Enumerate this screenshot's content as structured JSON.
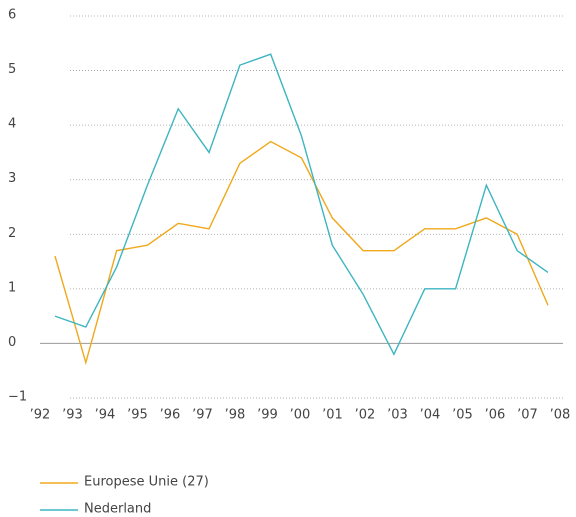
{
  "chart_data": {
    "type": "line",
    "categories": [
      "’92",
      "’93",
      "’94",
      "’95",
      "’96",
      "’97",
      "’98",
      "’99",
      "’00",
      "’01",
      "’02",
      "’03",
      "’04",
      "’05",
      "’06",
      "’07",
      "’08"
    ],
    "series": [
      {
        "name": "Europese Unie (27)",
        "color": "#f0a81c",
        "values": [
          1.6,
          -0.35,
          1.7,
          1.8,
          2.2,
          2.1,
          3.3,
          3.7,
          3.4,
          2.3,
          1.7,
          1.7,
          2.1,
          2.1,
          2.3,
          2.0,
          0.7
        ]
      },
      {
        "name": "Nederland",
        "color": "#3db5c0",
        "values": [
          0.5,
          0.3,
          1.4,
          2.9,
          4.3,
          3.5,
          5.1,
          5.3,
          3.8,
          1.8,
          0.9,
          -0.2,
          1.0,
          1.0,
          2.9,
          1.7,
          1.3
        ]
      }
    ],
    "ylim": [
      -1,
      6
    ],
    "yticks": [
      {
        "value": -1,
        "label": "−1"
      },
      0,
      1,
      2,
      3,
      4,
      5,
      6
    ],
    "grid": true
  }
}
